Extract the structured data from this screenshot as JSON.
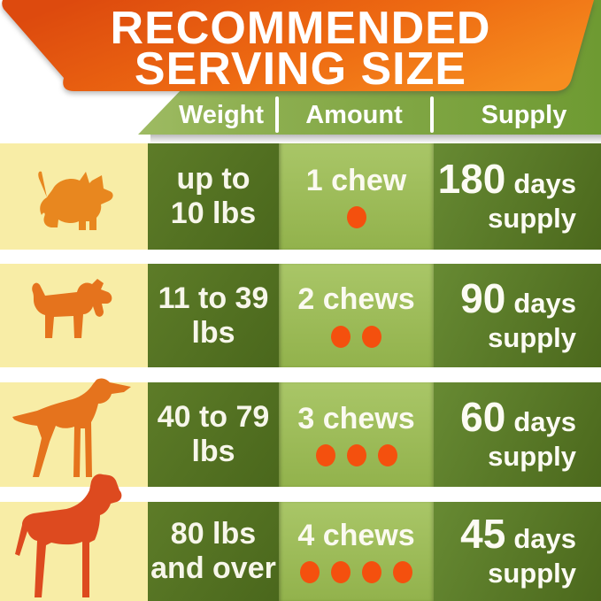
{
  "title": {
    "line1": "RECOMMENDED",
    "line2": "SERVING SIZE"
  },
  "header": {
    "columns": [
      "Weight",
      "Amount",
      "Supply"
    ]
  },
  "rows": [
    {
      "dog": "west-highland-terrier",
      "weight_line1": "up to",
      "weight_line2": "10 lbs",
      "amount": "1 chew",
      "chew_count": 1,
      "supply_amount": "180",
      "supply_unit": "days",
      "supply_word": "supply"
    },
    {
      "dog": "wire-fox-terrier",
      "weight_line1": "11 to 39",
      "weight_line2": "lbs",
      "amount": "2 chews",
      "chew_count": 2,
      "supply_amount": "90",
      "supply_unit": "days",
      "supply_word": "supply"
    },
    {
      "dog": "pointer",
      "weight_line1": "40 to 79",
      "weight_line2": "lbs",
      "amount": "3 chews",
      "chew_count": 3,
      "supply_amount": "60",
      "supply_unit": "days",
      "supply_word": "supply"
    },
    {
      "dog": "great-dane",
      "weight_line1": "80 lbs",
      "weight_line2": "and over",
      "amount": "4 chews",
      "chew_count": 4,
      "supply_amount": "45",
      "supply_unit": "days",
      "supply_word": "supply"
    }
  ],
  "colors": {
    "ribbon_orange_left": "#dd4a0e",
    "ribbon_orange_right": "#f68d1f",
    "header_band_green": "#8fb052",
    "cell_dark_green": "#52711f",
    "cell_light_green": "#a0be5c",
    "dog_column_yellow": "#f8eda6",
    "chew_dot_orange": "#f4500e",
    "dog_orange": "#e8871f",
    "dog_red_orange": "#dd4a1f",
    "text_white": "#ffffff"
  },
  "chart_data": {
    "type": "table",
    "title": "RECOMMENDED SERVING SIZE",
    "columns": [
      "Weight",
      "Amount",
      "Supply"
    ],
    "rows": [
      [
        "up to 10 lbs",
        "1 chew",
        "180 days supply"
      ],
      [
        "11 to 39 lbs",
        "2 chews",
        "90 days supply"
      ],
      [
        "40 to 79 lbs",
        "3 chews",
        "60 days supply"
      ],
      [
        "80 lbs and over",
        "4 chews",
        "45 days supply"
      ]
    ]
  }
}
